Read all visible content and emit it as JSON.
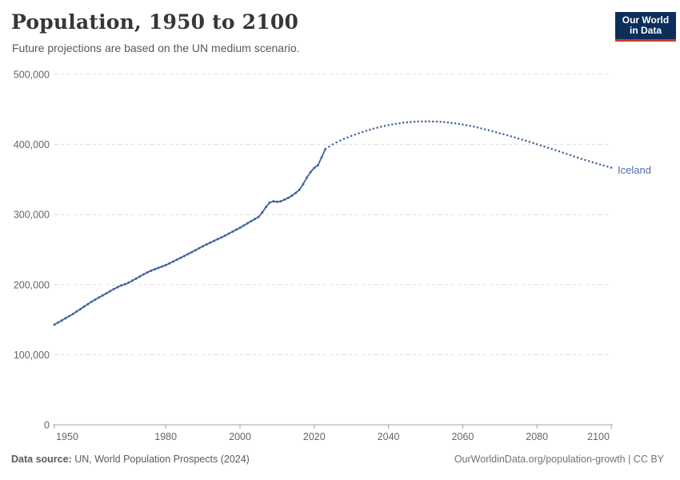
{
  "header": {
    "title": "Population, 1950 to 2100",
    "subtitle": "Future projections are based on the UN medium scenario.",
    "logo": {
      "line1": "Our World",
      "line2": "in Data",
      "bg_color": "#0d2e5a",
      "accent_color": "#cc3b33"
    }
  },
  "footer": {
    "source_label": "Data source:",
    "source_text": " UN, World Population Prospects (2024)",
    "link_text": "OurWorldinData.org/population-growth | CC BY"
  },
  "chart_data": {
    "type": "line",
    "title": "Population, 1950 to 2100",
    "subtitle": "Future projections are based on the UN medium scenario.",
    "entity": "Iceland",
    "unit": "people",
    "series_color": "#44639c",
    "entity_label_color": "#4d6fa5",
    "grid": "dashed-horizontal",
    "legend_position": "end-of-line-label",
    "xlim": [
      1950,
      2100
    ],
    "ylim": [
      0,
      500000
    ],
    "x_ticks": [
      1950,
      1980,
      2000,
      2020,
      2040,
      2060,
      2080,
      2100
    ],
    "y_ticks": [
      {
        "value": 0,
        "label": "0"
      },
      {
        "value": 100000,
        "label": "100,000"
      },
      {
        "value": 200000,
        "label": "200,000"
      },
      {
        "value": 300000,
        "label": "300,000"
      },
      {
        "value": 400000,
        "label": "400,000"
      },
      {
        "value": 500000,
        "label": "500,000"
      }
    ],
    "series": [
      {
        "name": "Iceland (estimates)",
        "style": "solid-with-markers",
        "points": [
          [
            1950,
            143000
          ],
          [
            1951,
            146000
          ],
          [
            1952,
            149000
          ],
          [
            1953,
            152100
          ],
          [
            1954,
            155100
          ],
          [
            1955,
            158100
          ],
          [
            1956,
            161600
          ],
          [
            1957,
            165100
          ],
          [
            1958,
            168600
          ],
          [
            1959,
            172100
          ],
          [
            1960,
            175600
          ],
          [
            1961,
            178600
          ],
          [
            1962,
            181600
          ],
          [
            1963,
            184600
          ],
          [
            1964,
            187600
          ],
          [
            1965,
            190600
          ],
          [
            1966,
            193600
          ],
          [
            1967,
            196400
          ],
          [
            1968,
            198700
          ],
          [
            1969,
            200600
          ],
          [
            1970,
            202800
          ],
          [
            1971,
            205700
          ],
          [
            1972,
            208700
          ],
          [
            1973,
            211700
          ],
          [
            1974,
            214600
          ],
          [
            1975,
            217400
          ],
          [
            1976,
            219800
          ],
          [
            1977,
            221900
          ],
          [
            1978,
            223900
          ],
          [
            1979,
            225900
          ],
          [
            1980,
            227800
          ],
          [
            1981,
            230400
          ],
          [
            1982,
            233000
          ],
          [
            1983,
            235600
          ],
          [
            1984,
            238200
          ],
          [
            1985,
            240900
          ],
          [
            1986,
            243600
          ],
          [
            1987,
            246400
          ],
          [
            1988,
            249200
          ],
          [
            1989,
            252000
          ],
          [
            1990,
            254800
          ],
          [
            1991,
            257400
          ],
          [
            1992,
            259900
          ],
          [
            1993,
            262400
          ],
          [
            1994,
            264900
          ],
          [
            1995,
            267300
          ],
          [
            1996,
            270000
          ],
          [
            1997,
            272800
          ],
          [
            1998,
            275600
          ],
          [
            1999,
            278400
          ],
          [
            2000,
            281200
          ],
          [
            2001,
            284300
          ],
          [
            2002,
            287400
          ],
          [
            2003,
            290500
          ],
          [
            2004,
            293600
          ],
          [
            2005,
            296700
          ],
          [
            2006,
            303000
          ],
          [
            2007,
            310700
          ],
          [
            2008,
            317100
          ],
          [
            2009,
            318900
          ],
          [
            2010,
            318300
          ],
          [
            2011,
            319000
          ],
          [
            2012,
            321300
          ],
          [
            2013,
            323800
          ],
          [
            2014,
            327100
          ],
          [
            2015,
            330800
          ],
          [
            2016,
            335400
          ],
          [
            2017,
            343400
          ],
          [
            2018,
            352700
          ],
          [
            2019,
            360600
          ],
          [
            2020,
            366500
          ],
          [
            2021,
            370300
          ],
          [
            2022,
            381900
          ],
          [
            2023,
            393400
          ]
        ]
      },
      {
        "name": "Iceland (UN medium projection)",
        "style": "dotted",
        "points": [
          [
            2023,
            393400
          ],
          [
            2024,
            397000
          ],
          [
            2025,
            400100
          ],
          [
            2026,
            403000
          ],
          [
            2027,
            405700
          ],
          [
            2028,
            408100
          ],
          [
            2029,
            410200
          ],
          [
            2030,
            412200
          ],
          [
            2031,
            414100
          ],
          [
            2032,
            416000
          ],
          [
            2033,
            417800
          ],
          [
            2034,
            419500
          ],
          [
            2035,
            421100
          ],
          [
            2036,
            422600
          ],
          [
            2037,
            424000
          ],
          [
            2038,
            425300
          ],
          [
            2039,
            426500
          ],
          [
            2040,
            427600
          ],
          [
            2041,
            428600
          ],
          [
            2042,
            429500
          ],
          [
            2043,
            430300
          ],
          [
            2044,
            431000
          ],
          [
            2045,
            431600
          ],
          [
            2046,
            432100
          ],
          [
            2047,
            432500
          ],
          [
            2048,
            432800
          ],
          [
            2049,
            432900
          ],
          [
            2050,
            433000
          ],
          [
            2051,
            433000
          ],
          [
            2052,
            432800
          ],
          [
            2053,
            432600
          ],
          [
            2054,
            432300
          ],
          [
            2055,
            432000
          ],
          [
            2056,
            431400
          ],
          [
            2057,
            430800
          ],
          [
            2058,
            430100
          ],
          [
            2059,
            429300
          ],
          [
            2060,
            428500
          ],
          [
            2061,
            427500
          ],
          [
            2062,
            426500
          ],
          [
            2063,
            425400
          ],
          [
            2064,
            424200
          ],
          [
            2065,
            423000
          ],
          [
            2066,
            421700
          ],
          [
            2067,
            420300
          ],
          [
            2068,
            418900
          ],
          [
            2069,
            417500
          ],
          [
            2070,
            416000
          ],
          [
            2071,
            414600
          ],
          [
            2072,
            413100
          ],
          [
            2073,
            411600
          ],
          [
            2074,
            410100
          ],
          [
            2075,
            408500
          ],
          [
            2076,
            406900
          ],
          [
            2077,
            405300
          ],
          [
            2078,
            403700
          ],
          [
            2079,
            402100
          ],
          [
            2080,
            400500
          ],
          [
            2081,
            398800
          ],
          [
            2082,
            397100
          ],
          [
            2083,
            395400
          ],
          [
            2084,
            393700
          ],
          [
            2085,
            392000
          ],
          [
            2086,
            390300
          ],
          [
            2087,
            388500
          ],
          [
            2088,
            386700
          ],
          [
            2089,
            384900
          ],
          [
            2090,
            383000
          ],
          [
            2091,
            381300
          ],
          [
            2092,
            379600
          ],
          [
            2093,
            377900
          ],
          [
            2094,
            376200
          ],
          [
            2095,
            374500
          ],
          [
            2096,
            373000
          ],
          [
            2097,
            371500
          ],
          [
            2098,
            370000
          ],
          [
            2099,
            368500
          ],
          [
            2100,
            367000
          ]
        ]
      }
    ],
    "colors": {
      "gridline": "#dcdcdc",
      "axis": "#a3a3a3",
      "tick_text": "#666666"
    }
  }
}
